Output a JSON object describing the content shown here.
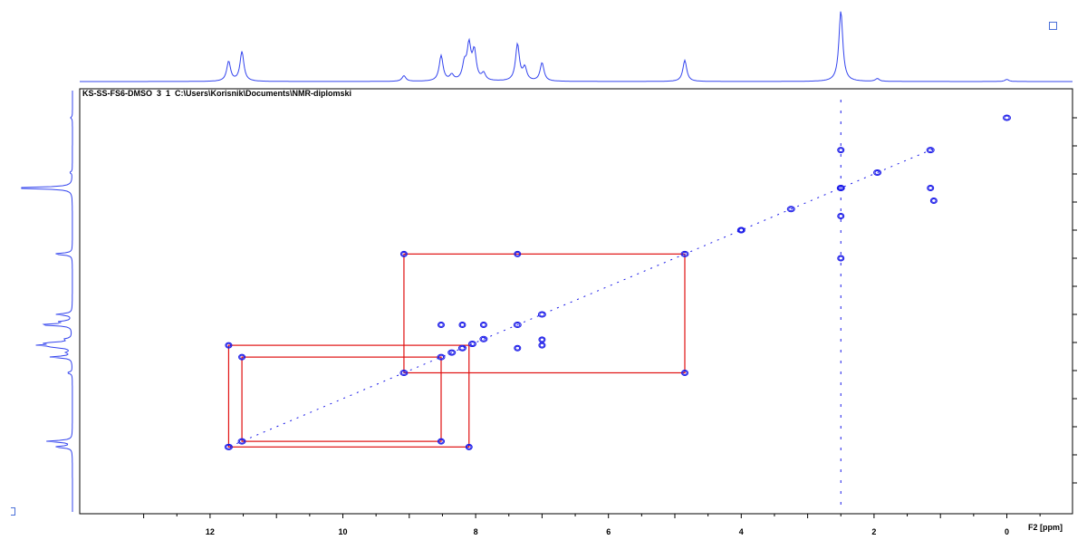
{
  "header": {
    "title": "KS-SS-FS6-DMSO  3  1  C:\\Users\\Korisnik\\Documents\\NMR-diplomski"
  },
  "colors": {
    "contour": "#1818e8",
    "projection": "#3344ee",
    "crosspeak_box": "#e01010",
    "axis": "#000000"
  },
  "chart_data": {
    "type": "scatter",
    "subtype": "2D COSY NMR contour plot",
    "xlabel": "F2 [ppm]",
    "ylabel": "",
    "x_ticks": [
      "12",
      "10",
      "8",
      "6",
      "4",
      "2",
      "0"
    ],
    "x_tick_values": [
      12,
      10,
      8,
      6,
      4,
      2,
      0
    ],
    "xlim": [
      13.9,
      -1.0
    ],
    "ylim": [
      13.9,
      -1.0
    ],
    "x_reversed": true,
    "grid": false,
    "legend": "none",
    "projection_peaks_ppm": [
      {
        "ppm": 11.72,
        "intensity": 0.28
      },
      {
        "ppm": 11.52,
        "intensity": 0.42
      },
      {
        "ppm": 9.08,
        "intensity": 0.08
      },
      {
        "ppm": 8.52,
        "intensity": 0.36
      },
      {
        "ppm": 8.36,
        "intensity": 0.08
      },
      {
        "ppm": 8.17,
        "intensity": 0.22
      },
      {
        "ppm": 8.1,
        "intensity": 0.48
      },
      {
        "ppm": 8.02,
        "intensity": 0.4
      },
      {
        "ppm": 7.88,
        "intensity": 0.1
      },
      {
        "ppm": 7.37,
        "intensity": 0.52
      },
      {
        "ppm": 7.26,
        "intensity": 0.18
      },
      {
        "ppm": 7.0,
        "intensity": 0.26
      },
      {
        "ppm": 4.85,
        "intensity": 0.3
      },
      {
        "ppm": 2.5,
        "intensity": 1.0
      },
      {
        "ppm": 1.95,
        "intensity": 0.04
      },
      {
        "ppm": 0.0,
        "intensity": 0.03
      }
    ],
    "diagonal_peaks": [
      11.72,
      11.52,
      9.08,
      8.52,
      8.36,
      8.2,
      8.05,
      7.88,
      7.37,
      7.0,
      4.85,
      4.0,
      3.25,
      2.5,
      1.95,
      1.15,
      0.0
    ],
    "cross_peaks": [
      {
        "x": 9.08,
        "y": 4.85
      },
      {
        "x": 4.85,
        "y": 9.08
      },
      {
        "x": 7.37,
        "y": 4.85
      },
      {
        "x": 11.72,
        "y": 8.1
      },
      {
        "x": 11.52,
        "y": 8.52
      },
      {
        "x": 8.52,
        "y": 11.52
      },
      {
        "x": 8.1,
        "y": 11.72
      },
      {
        "x": 8.52,
        "y": 7.37
      },
      {
        "x": 8.2,
        "y": 7.37
      },
      {
        "x": 7.88,
        "y": 7.37
      },
      {
        "x": 7.37,
        "y": 8.2
      },
      {
        "x": 7.0,
        "y": 8.1
      },
      {
        "x": 7.0,
        "y": 7.9
      },
      {
        "x": 2.5,
        "y": 2.5
      },
      {
        "x": 1.15,
        "y": 2.5
      },
      {
        "x": 2.5,
        "y": 1.15
      },
      {
        "x": 2.5,
        "y": 5.0
      },
      {
        "x": 2.5,
        "y": 3.5
      },
      {
        "x": 4.0,
        "y": 4.0
      },
      {
        "x": 1.1,
        "y": 2.95
      }
    ],
    "highlight_boxes": [
      {
        "x1": 9.08,
        "x2": 4.85,
        "y1": 4.85,
        "y2": 9.08
      },
      {
        "x1": 11.52,
        "x2": 8.52,
        "y1": 8.52,
        "y2": 11.52
      },
      {
        "x1": 11.72,
        "x2": 8.1,
        "y1": 8.1,
        "y2": 11.72
      }
    ]
  }
}
